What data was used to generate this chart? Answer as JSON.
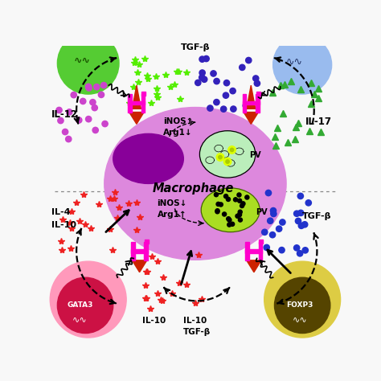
{
  "bg_color": "#f8f8f8",
  "macrophage_color": "#dd88dd",
  "nucleus_color": "#880099",
  "th1_color": "#55cc33",
  "th17_color": "#99bbee",
  "th2_color": "#ff99bb",
  "treg_color": "#ddcc44",
  "gata3_inner_color": "#cc1144",
  "foxp3_inner_color": "#554400",
  "receptor_magenta": "#ff00cc",
  "receptor_red": "#cc2200",
  "il12_color": "#cc44cc",
  "il17_color": "#33aa33",
  "il10_color": "#2233cc",
  "red_star_color": "#ee2222",
  "green_star_color": "#88ee00",
  "blue_dot_color": "#2233cc",
  "purple_dot_color": "#6622aa",
  "labels": {
    "IL12": "IL-12",
    "IL17": "IL-17",
    "IL4": "IL-4",
    "IL10": "IL-10",
    "TGFb": "TGF-β",
    "iNOS_up": "iNOS↑",
    "Arg1_down": "Arg1↓",
    "iNOS_down": "iNOS↓",
    "Arg1_up": "Arg1↑",
    "Macrophage": "Macrophage",
    "PV": "PV",
    "GATA3": "GATA3",
    "FOXP3": "FOXP3",
    "TGF_top": "TGF-β"
  }
}
